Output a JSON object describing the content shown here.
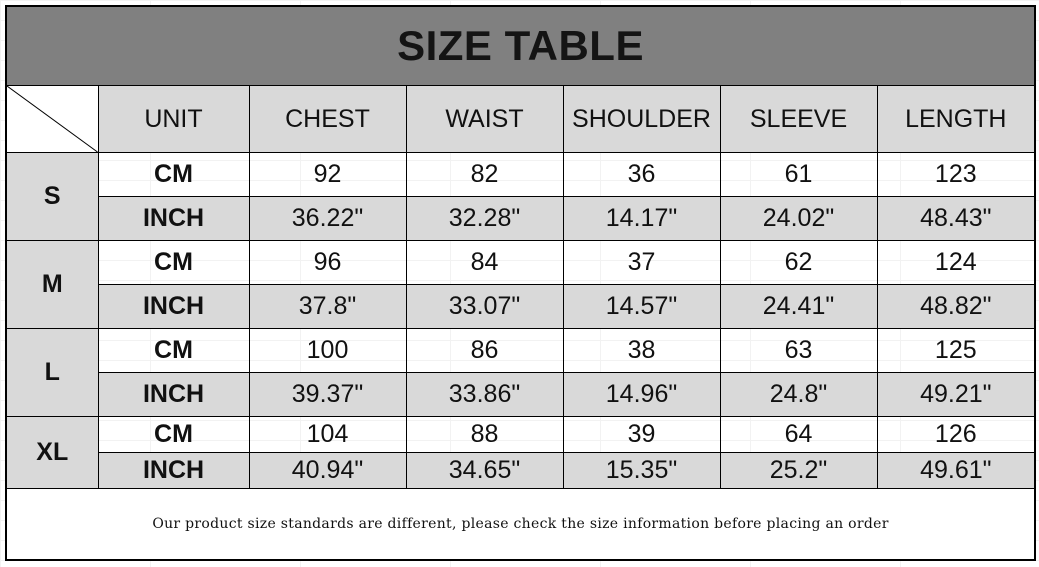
{
  "title": "SIZE TABLE",
  "headers": [
    "UNIT",
    "CHEST",
    "WAIST",
    "SHOULDER",
    "SLEEVE",
    "LENGTH"
  ],
  "sizes": [
    {
      "size": "S",
      "cm": {
        "unit": "CM",
        "values": [
          "92",
          "82",
          "36",
          "61",
          "123"
        ]
      },
      "inch": {
        "unit": "INCH",
        "values": [
          "36.22\"",
          "32.28\"",
          "14.17\"",
          "24.02\"",
          "48.43\""
        ]
      }
    },
    {
      "size": "M",
      "cm": {
        "unit": "CM",
        "values": [
          "96",
          "84",
          "37",
          "62",
          "124"
        ]
      },
      "inch": {
        "unit": "INCH",
        "values": [
          "37.8\"",
          "33.07\"",
          "14.57\"",
          "24.41\"",
          "48.82\""
        ]
      }
    },
    {
      "size": "L",
      "cm": {
        "unit": "CM",
        "values": [
          "100",
          "86",
          "38",
          "63",
          "125"
        ]
      },
      "inch": {
        "unit": "INCH",
        "values": [
          "39.37\"",
          "33.86\"",
          "14.96\"",
          "24.8\"",
          "49.21\""
        ]
      }
    },
    {
      "size": "XL",
      "cm": {
        "unit": "CM",
        "values": [
          "104",
          "88",
          "39",
          "64",
          "126"
        ]
      },
      "inch": {
        "unit": "INCH",
        "values": [
          "40.94\"",
          "34.65\"",
          "15.35\"",
          "25.2\"",
          "49.61\""
        ]
      }
    }
  ],
  "footer_note": "Our product size standards are different, please check the size information before placing an order",
  "colors": {
    "title_bg": "#808080",
    "cell_gray": "#d9d9d9"
  }
}
